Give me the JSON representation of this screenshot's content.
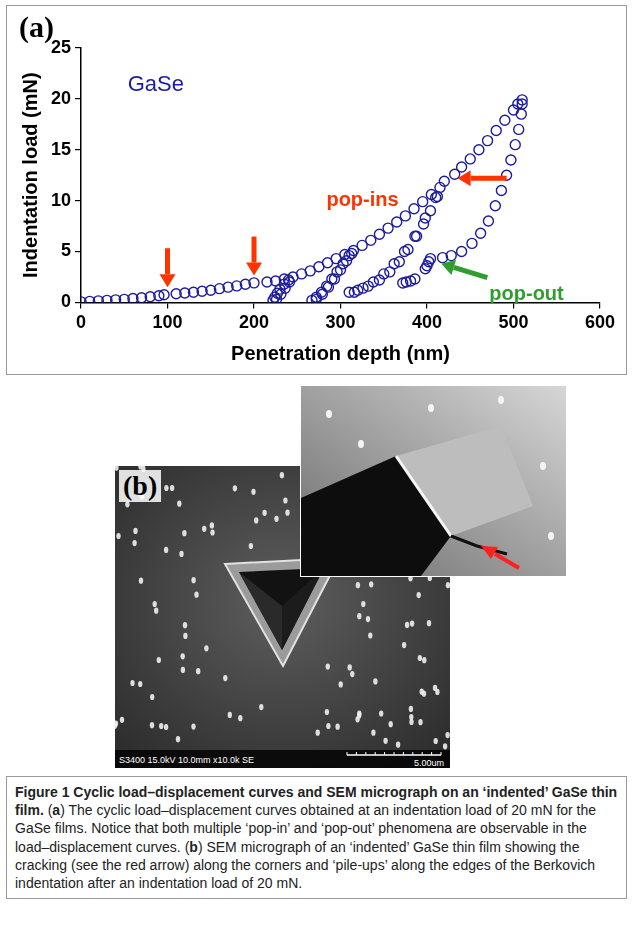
{
  "chart_data": {
    "type": "scatter",
    "panel": "(a)",
    "x_label": "Penetration depth (nm)",
    "y_label": "Indentation load (mN)",
    "xlim": [
      0,
      600
    ],
    "xticks": [
      0,
      100,
      200,
      300,
      400,
      500,
      600
    ],
    "ylim": [
      0,
      25
    ],
    "yticks": [
      0,
      5,
      10,
      15,
      20,
      25
    ],
    "grid": false,
    "x": [
      0,
      10,
      20,
      30,
      40,
      50,
      60,
      70,
      80,
      90,
      96,
      110,
      120,
      130,
      140,
      150,
      160,
      170,
      180,
      190,
      200,
      215,
      225,
      235,
      245,
      255,
      265,
      275,
      285,
      295,
      305,
      315,
      325,
      335,
      345,
      355,
      365,
      375,
      385,
      395,
      405,
      415,
      420,
      432,
      440,
      450,
      460,
      470,
      480,
      490,
      500,
      505,
      510,
      240,
      235,
      230,
      227,
      224,
      222,
      226,
      231,
      236,
      241,
      310,
      303,
      296,
      290,
      284,
      278,
      272,
      267,
      272,
      279,
      286,
      293,
      300,
      307,
      313,
      412,
      404,
      396,
      388,
      378,
      368,
      357,
      345,
      332,
      320,
      310,
      316,
      326,
      338,
      350,
      362,
      374,
      386,
      398,
      410,
      510,
      509,
      506,
      502,
      497,
      492,
      486,
      479,
      471,
      462,
      452,
      440,
      428,
      418,
      404,
      402,
      400,
      398,
      386,
      381,
      376,
      372
    ],
    "series": [
      {
        "name": "GaSe",
        "color": "#1c1c9c",
        "marker": "circle",
        "values": [
          0.05,
          0.1,
          0.15,
          0.2,
          0.25,
          0.3,
          0.38,
          0.45,
          0.55,
          0.65,
          0.75,
          0.85,
          0.92,
          1.0,
          1.1,
          1.2,
          1.35,
          1.5,
          1.62,
          1.78,
          1.92,
          2.0,
          2.1,
          2.3,
          2.5,
          2.8,
          3.1,
          3.5,
          3.9,
          4.3,
          4.7,
          5.1,
          5.6,
          6.1,
          6.7,
          7.3,
          7.9,
          8.5,
          9.2,
          9.9,
          10.6,
          11.3,
          11.9,
          12.6,
          13.3,
          14.1,
          15.0,
          15.9,
          16.9,
          17.9,
          18.9,
          19.5,
          19.9,
          2.2,
          1.8,
          1.3,
          0.9,
          0.5,
          0.2,
          0.3,
          0.8,
          1.4,
          2.0,
          4.6,
          3.8,
          3.0,
          2.3,
          1.6,
          1.0,
          0.5,
          0.2,
          0.3,
          0.8,
          1.5,
          2.3,
          3.2,
          4.1,
          4.8,
          10.4,
          9.0,
          7.7,
          6.5,
          5.2,
          4.0,
          3.0,
          2.2,
          1.6,
          1.2,
          1.0,
          1.0,
          1.4,
          2.0,
          2.8,
          3.8,
          5.0,
          6.5,
          8.3,
          10.3,
          19.5,
          18.5,
          17.0,
          15.5,
          14.0,
          12.5,
          11.0,
          9.5,
          8.0,
          6.8,
          5.8,
          5.0,
          4.6,
          4.4,
          4.3,
          4.0,
          3.6,
          3.3,
          2.3,
          2.1,
          2.0,
          1.9
        ]
      }
    ],
    "annotations": [
      {
        "text": "pop-ins",
        "color": "#ff3300",
        "points": [
          [
            100,
            0.8
          ],
          [
            200,
            1.95
          ],
          [
            425,
            12.2
          ]
        ]
      },
      {
        "text": "pop-out",
        "color": "#2e9e2e",
        "points": [
          [
            405,
            4.4
          ]
        ]
      }
    ]
  },
  "panel_b": {
    "panel": "(b)",
    "sem_info": "S3400 15.0kV 10.0mm x10.0k SE",
    "scale_bar": "5.00um"
  },
  "caption": [
    {
      "text": "Figure 1 Cyclic load–displacement curves and SEM micrograph on an ‘indented’ GaSe thin film.",
      "bold": true
    },
    {
      "text": " ("
    },
    {
      "text": "a",
      "bold": true
    },
    {
      "text": ") The cyclic load–displacement curves obtained at an indentation load of 20 mN for the GaSe films. Notice that both multiple ‘pop-in’ and ‘pop-out’ phenomena are observable in the load–displacement curves. ("
    },
    {
      "text": "b",
      "bold": true
    },
    {
      "text": ") SEM micrograph of an ‘indented’ GaSe thin film showing the cracking (see the red arrow) along the corners and ‘pile-ups’ along the edges of the Berkovich indentation after an indentation load of 20 mN."
    }
  ]
}
